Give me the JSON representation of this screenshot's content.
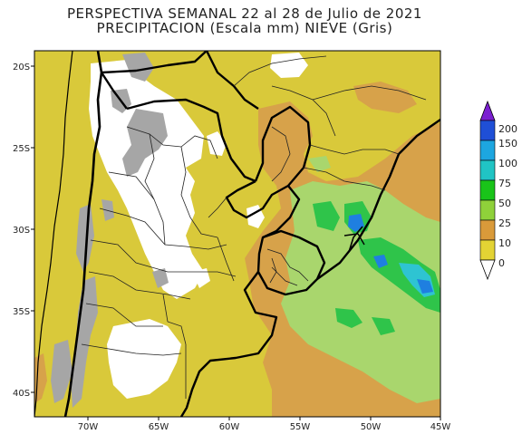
{
  "title": {
    "line1": "PERSPECTIVA SEMANAL  22 al 28 de Julio de 2021",
    "line2": "PRECIPITACION (Escala mm) NIEVE (Gris)"
  },
  "axes": {
    "lat_labels": [
      "20S",
      "25S",
      "30S",
      "35S",
      "40S"
    ],
    "lon_labels": [
      "70W",
      "65W",
      "60W",
      "55W",
      "50W",
      "45W"
    ]
  },
  "colorbar": {
    "labels": [
      "200",
      "150",
      "100",
      "75",
      "50",
      "25",
      "10",
      "0"
    ],
    "colors": [
      "#7b1fd1",
      "#1f4fd6",
      "#1da6e0",
      "#20c4c4",
      "#19c419",
      "#8fd13a",
      "#d99a3a",
      "#e3d334"
    ]
  },
  "palette": {
    "ocean": "#e3d334",
    "base": "#d9c93a",
    "snow": "#a6a6a6",
    "white": "#ffffff",
    "orange": "#d7a24a",
    "lightgreen": "#a9d66d",
    "green": "#2fc44a",
    "cyan": "#2ec4d2",
    "blue": "#1f7fe0"
  }
}
